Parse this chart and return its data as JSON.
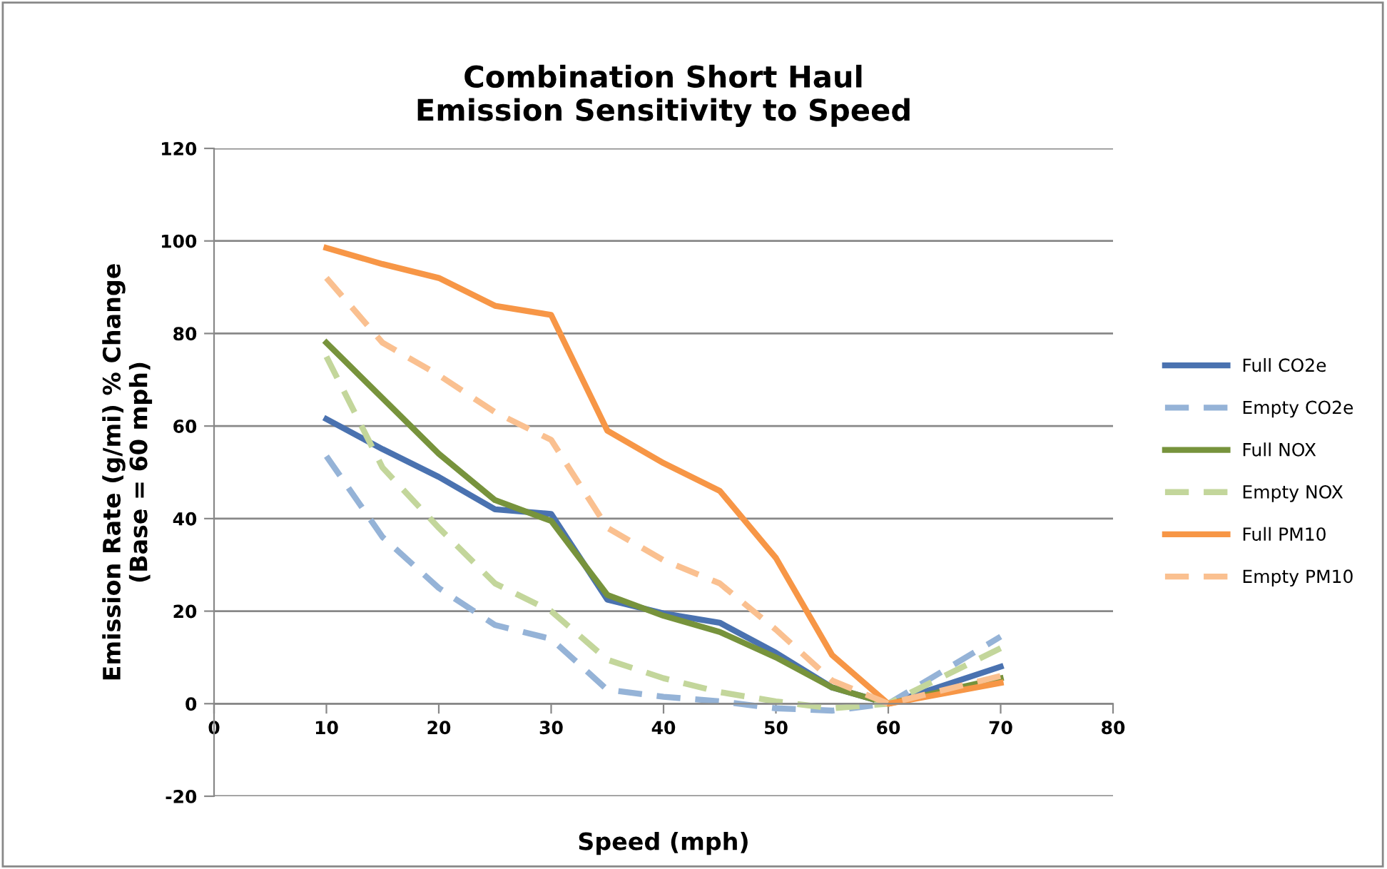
{
  "chart_data": {
    "type": "line",
    "title": "Combination Short Haul\nEmission Sensitivity to Speed",
    "xlabel": "Speed (mph)",
    "ylabel": "Emission Rate (g/mi) % Change\n(Base = 60 mph)",
    "x": [
      10,
      15,
      20,
      25,
      30,
      35,
      40,
      45,
      50,
      55,
      60,
      70
    ],
    "series": [
      {
        "name": "Full CO2e",
        "color": "#4a72b0",
        "line_style": "solid",
        "values": [
          61.5,
          55,
          49,
          42,
          41,
          22.5,
          19.5,
          17.5,
          11,
          3.5,
          0,
          8
        ]
      },
      {
        "name": "Empty CO2e",
        "color": "#95b3d7",
        "line_style": "dashed",
        "values": [
          53.5,
          36,
          25,
          17,
          14,
          3,
          1.5,
          0.5,
          -1,
          -1.5,
          0,
          14.5
        ]
      },
      {
        "name": "Full NOX",
        "color": "#77933c",
        "line_style": "solid",
        "values": [
          78,
          66,
          54,
          44,
          39.5,
          23.5,
          19,
          15.5,
          10,
          3.5,
          0,
          5.5
        ]
      },
      {
        "name": "Empty NOX",
        "color": "#c3d69b",
        "line_style": "dashed",
        "values": [
          75,
          51,
          38,
          26,
          20,
          9.5,
          5.5,
          2.5,
          0.5,
          -1,
          0,
          12
        ]
      },
      {
        "name": "Full PM10",
        "color": "#f79646",
        "line_style": "solid",
        "values": [
          98.5,
          95,
          92,
          86,
          84,
          59,
          52,
          46,
          31.5,
          10.5,
          0,
          4.5
        ]
      },
      {
        "name": "Empty PM10",
        "color": "#fac090",
        "line_style": "dashed",
        "values": [
          92,
          78,
          71,
          63,
          57,
          38,
          31,
          26,
          16,
          5,
          0,
          6
        ]
      }
    ],
    "xlim": [
      0,
      80
    ],
    "xticks": [
      0,
      10,
      20,
      30,
      40,
      50,
      60,
      70,
      80
    ],
    "ylim": [
      -20,
      120
    ],
    "yticks": [
      -20,
      0,
      20,
      40,
      60,
      80,
      100,
      120
    ],
    "grid": "y",
    "legend": "right",
    "marker": "none"
  }
}
